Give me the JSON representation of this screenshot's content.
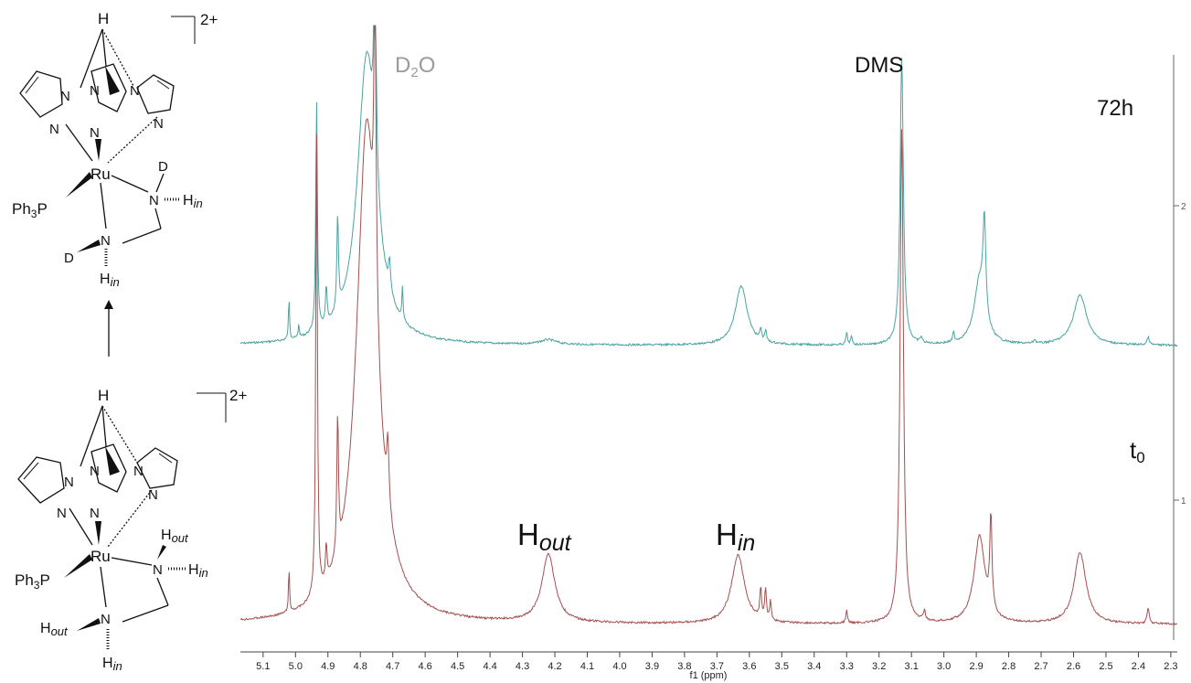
{
  "chart_data": {
    "type": "line",
    "title": "",
    "xlabel": "f1 (ppm)",
    "ylabel": "",
    "x_reversed": true,
    "xlim": [
      5.17,
      2.28
    ],
    "x_ticks": [
      "5.1",
      "5.0",
      "4.9",
      "4.8",
      "4.7",
      "4.6",
      "4.5",
      "4.4",
      "4.3",
      "4.2",
      "4.1",
      "4.0",
      "3.9",
      "3.8",
      "3.7",
      "3.6",
      "3.5",
      "3.4",
      "3.3",
      "3.2",
      "3.1",
      "3.0",
      "2.9",
      "2.8",
      "2.7",
      "2.6",
      "2.5",
      "2.4",
      "2.3"
    ],
    "right_axis_ticks": [
      "2",
      "1"
    ],
    "grid": false,
    "annotations": {
      "d2o": "D2O",
      "dms": "DMS",
      "h_out": "Hout",
      "h_in": "Hin"
    },
    "series": [
      {
        "name": "72h",
        "color": "#4aa3a3",
        "baseline": 0.06,
        "peaks": [
          {
            "x": 5.02,
            "h": 0.22,
            "w": 0.002
          },
          {
            "x": 4.99,
            "h": 0.07,
            "w": 0.002
          },
          {
            "x": 4.935,
            "h": 1.2,
            "w": 0.003
          },
          {
            "x": 4.905,
            "h": 0.2,
            "w": 0.003
          },
          {
            "x": 4.87,
            "h": 0.5,
            "w": 0.003
          },
          {
            "x": 4.78,
            "h": 1.5,
            "w": 0.035
          },
          {
            "x": 4.755,
            "h": 1.2,
            "w": 0.004
          },
          {
            "x": 4.71,
            "h": 0.15,
            "w": 0.004
          },
          {
            "x": 4.67,
            "h": 0.18,
            "w": 0.002
          },
          {
            "x": 4.22,
            "h": 0.025,
            "w": 0.03
          },
          {
            "x": 3.625,
            "h": 0.31,
            "w": 0.022
          },
          {
            "x": 3.565,
            "h": 0.06,
            "w": 0.003
          },
          {
            "x": 3.55,
            "h": 0.06,
            "w": 0.003
          },
          {
            "x": 3.3,
            "h": 0.06,
            "w": 0.003
          },
          {
            "x": 3.285,
            "h": 0.04,
            "w": 0.003
          },
          {
            "x": 3.13,
            "h": 1.5,
            "w": 0.006
          },
          {
            "x": 3.07,
            "h": 0.03,
            "w": 0.004
          },
          {
            "x": 2.97,
            "h": 0.05,
            "w": 0.003
          },
          {
            "x": 2.89,
            "h": 0.33,
            "w": 0.02
          },
          {
            "x": 2.875,
            "h": 0.5,
            "w": 0.005
          },
          {
            "x": 2.72,
            "h": 0.02,
            "w": 0.004
          },
          {
            "x": 2.58,
            "h": 0.26,
            "w": 0.025
          },
          {
            "x": 2.37,
            "h": 0.04,
            "w": 0.004
          }
        ]
      },
      {
        "name": "t0",
        "color": "#a35050",
        "baseline": 0.0,
        "peaks": [
          {
            "x": 5.02,
            "h": 0.14,
            "w": 0.002
          },
          {
            "x": 4.935,
            "h": 1.5,
            "w": 0.003
          },
          {
            "x": 4.905,
            "h": 0.12,
            "w": 0.003
          },
          {
            "x": 4.87,
            "h": 0.45,
            "w": 0.003
          },
          {
            "x": 4.78,
            "h": 1.6,
            "w": 0.038
          },
          {
            "x": 4.755,
            "h": 1.0,
            "w": 0.004
          },
          {
            "x": 4.715,
            "h": 0.2,
            "w": 0.004
          },
          {
            "x": 4.22,
            "h": 0.22,
            "w": 0.024
          },
          {
            "x": 3.635,
            "h": 0.22,
            "w": 0.024
          },
          {
            "x": 3.565,
            "h": 0.1,
            "w": 0.003
          },
          {
            "x": 3.55,
            "h": 0.1,
            "w": 0.003
          },
          {
            "x": 3.535,
            "h": 0.06,
            "w": 0.003
          },
          {
            "x": 3.3,
            "h": 0.04,
            "w": 0.003
          },
          {
            "x": 3.13,
            "h": 1.6,
            "w": 0.006
          },
          {
            "x": 3.06,
            "h": 0.03,
            "w": 0.004
          },
          {
            "x": 2.89,
            "h": 0.28,
            "w": 0.02
          },
          {
            "x": 2.855,
            "h": 0.3,
            "w": 0.004
          },
          {
            "x": 2.58,
            "h": 0.23,
            "w": 0.022
          },
          {
            "x": 2.37,
            "h": 0.05,
            "w": 0.004
          }
        ]
      }
    ]
  },
  "scheme": {
    "charge": "2+",
    "arrow": "↑",
    "top_complex": {
      "apical_h": "H",
      "metal": "Ru",
      "phosphine": "Ph3P",
      "n": "N",
      "deuterium": "D",
      "h_in": "Hin"
    },
    "bottom_complex": {
      "apical_h": "H",
      "metal": "Ru",
      "phosphine": "Ph3P",
      "n": "N",
      "h_out": "Hout",
      "h_in": "Hin"
    }
  }
}
